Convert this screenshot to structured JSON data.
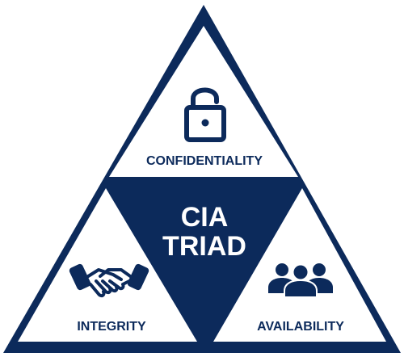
{
  "colors": {
    "navy": "#0c2a5b",
    "background": "#ffffff"
  },
  "center": {
    "line1": "CIA",
    "line2": "TRIAD"
  },
  "sections": {
    "confidentiality": {
      "label": "CONFIDENTIALITY",
      "icon": "padlock-icon"
    },
    "integrity": {
      "label": "INTEGRITY",
      "icon": "handshake-icon"
    },
    "availability": {
      "label": "AVAILABILITY",
      "icon": "people-group-icon"
    }
  }
}
